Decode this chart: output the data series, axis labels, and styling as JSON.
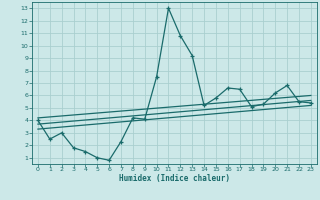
{
  "xlabel": "Humidex (Indice chaleur)",
  "bg_color": "#cce8e8",
  "grid_color": "#aacfcf",
  "line_color": "#1a6b6b",
  "xlim": [
    -0.5,
    23.5
  ],
  "ylim": [
    0.5,
    13.5
  ],
  "xticks": [
    0,
    1,
    2,
    3,
    4,
    5,
    6,
    7,
    8,
    9,
    10,
    11,
    12,
    13,
    14,
    15,
    16,
    17,
    18,
    19,
    20,
    21,
    22,
    23
  ],
  "yticks": [
    1,
    2,
    3,
    4,
    5,
    6,
    7,
    8,
    9,
    10,
    11,
    12,
    13
  ],
  "main_x": [
    0,
    1,
    2,
    3,
    4,
    5,
    6,
    7,
    8,
    9,
    10,
    11,
    12,
    13,
    14,
    15,
    16,
    17,
    18,
    19,
    20,
    21,
    22,
    23
  ],
  "main_y": [
    4.0,
    2.5,
    3.0,
    1.8,
    1.5,
    1.0,
    0.8,
    2.3,
    4.2,
    4.1,
    7.5,
    13.0,
    10.8,
    9.2,
    5.2,
    5.8,
    6.6,
    6.5,
    5.1,
    5.3,
    6.2,
    6.8,
    5.5,
    5.4
  ],
  "trend1_x": [
    0,
    23
  ],
  "trend1_y": [
    4.2,
    6.0
  ],
  "trend2_x": [
    0,
    23
  ],
  "trend2_y": [
    3.7,
    5.6
  ],
  "trend3_x": [
    0,
    23
  ],
  "trend3_y": [
    3.3,
    5.2
  ]
}
